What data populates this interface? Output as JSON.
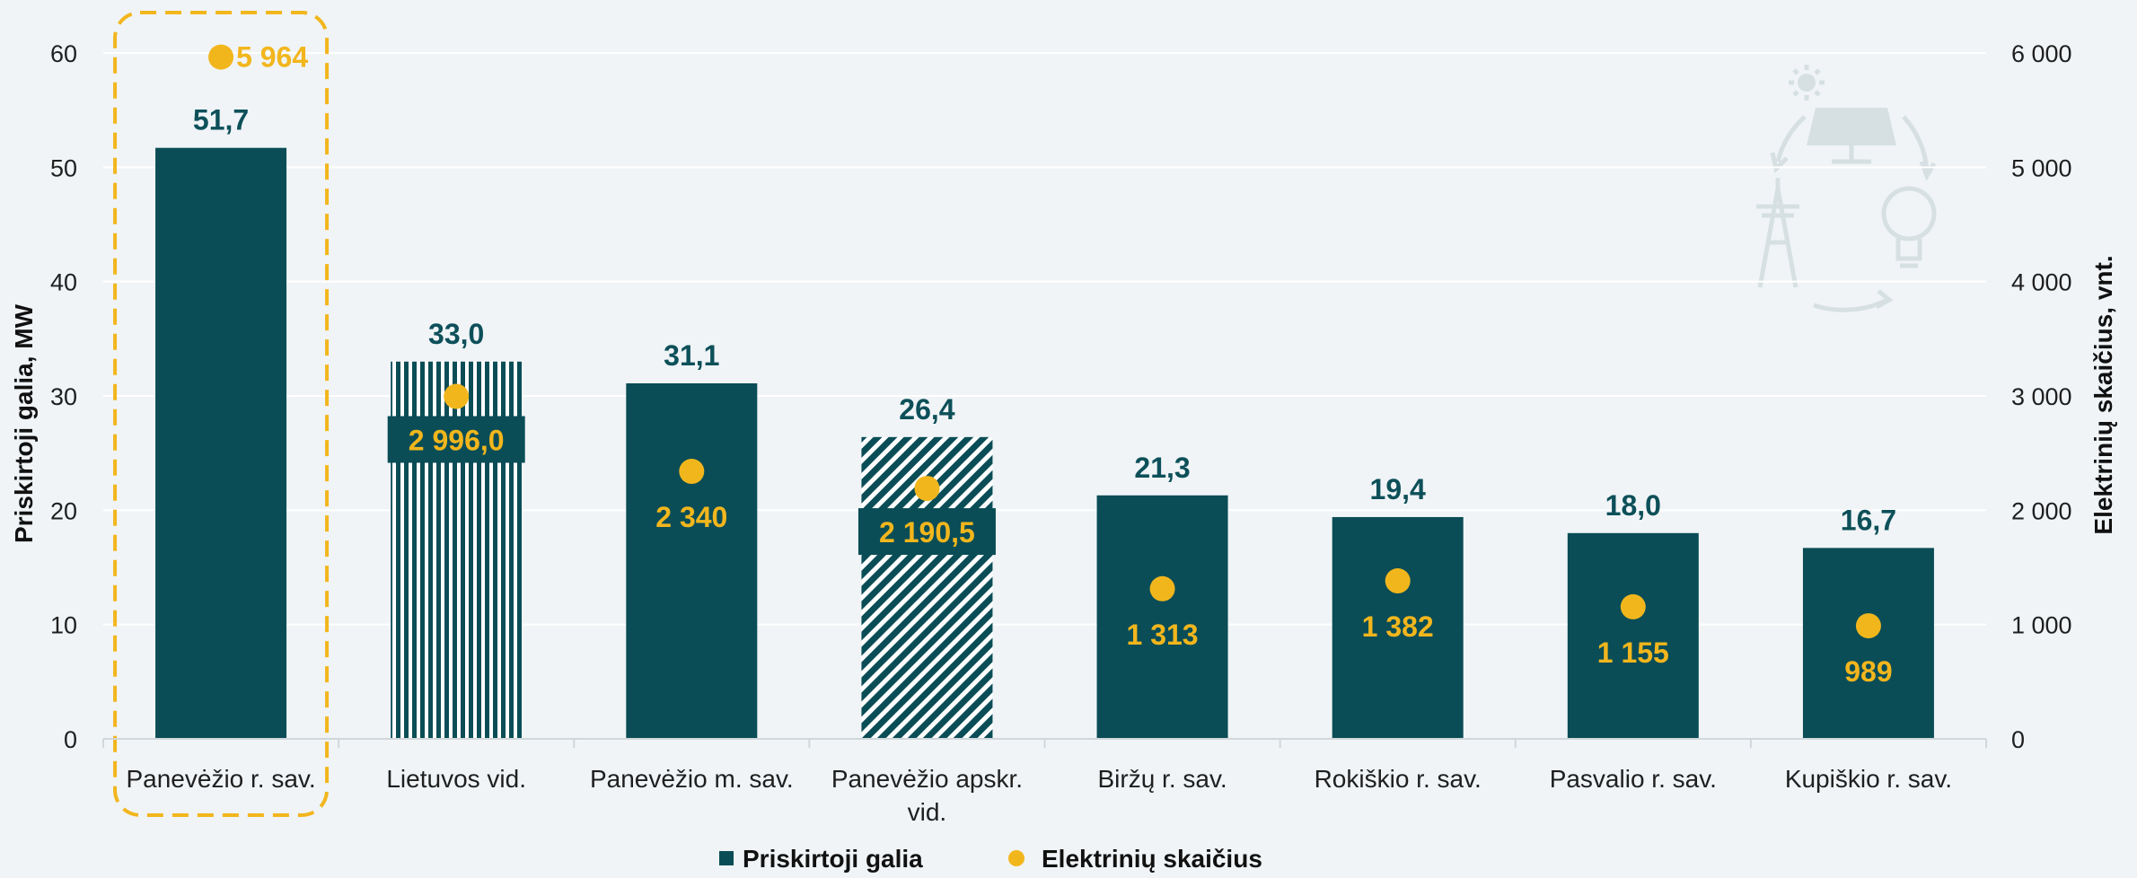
{
  "colors": {
    "bar": "#0a4d56",
    "bar_label": "#0d5059",
    "dot": "#f2b61d",
    "grid": "#ffffff",
    "background": "#f0f4f7",
    "highlight_border": "#f2b61d",
    "icon": "#d6e0e3"
  },
  "decor": {
    "watermark_icon": "solar-energy-cycle-icon"
  },
  "chart_data": {
    "type": "bar",
    "categories": [
      "Panevėžio r. sav.",
      "Lietuvos vid.",
      "Panevėžio m. sav.",
      "Panevėžio apskr. vid.",
      "Biržų r. sav.",
      "Rokiškio r. sav.",
      "Pasvalio r. sav.",
      "Kupiškio r. sav."
    ],
    "bar_patterns": [
      "solid",
      "vertical-stripes",
      "solid",
      "diagonal-stripes",
      "solid",
      "solid",
      "solid",
      "solid"
    ],
    "highlighted_category": "Panevėžio r. sav.",
    "series": [
      {
        "name": "Priskirtoji galia",
        "type": "bar",
        "axis": "left",
        "values": [
          51.7,
          33.0,
          31.1,
          26.4,
          21.3,
          19.4,
          18.0,
          16.7
        ],
        "labels": [
          "51,7",
          "33,0",
          "31,1",
          "26,4",
          "21,3",
          "19,4",
          "18,0",
          "16,7"
        ]
      },
      {
        "name": "Elektrinių skaičius",
        "type": "scatter",
        "axis": "right",
        "values": [
          5964,
          2996.0,
          2340,
          2190.5,
          1313,
          1382,
          1155,
          989
        ],
        "labels": [
          "5 964",
          "2 996,0",
          "2 340",
          "2 190,5",
          "1 313",
          "1 382",
          "1 155",
          "989"
        ]
      }
    ],
    "ylabel_left": "Priskirtoji galia, MW",
    "ylabel_right": "Elektrinių skaičius, vnt.",
    "ylim_left": [
      0,
      60
    ],
    "ylim_right": [
      0,
      6000
    ],
    "yticks_left": [
      "0",
      "10",
      "20",
      "30",
      "40",
      "50",
      "60"
    ],
    "yticks_right": [
      "0",
      "1 000",
      "2 000",
      "3 000",
      "4 000",
      "5 000",
      "6 000"
    ],
    "grid": true,
    "legend_position": "bottom"
  }
}
